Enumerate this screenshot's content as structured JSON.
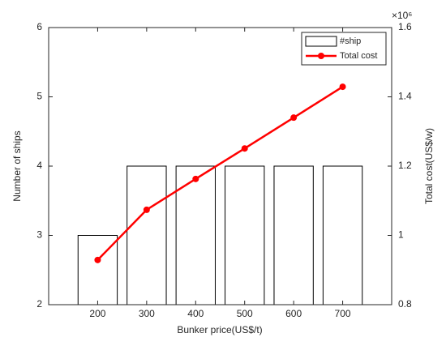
{
  "chart_data": {
    "type": "bar",
    "x_label": "Bunker price(US$/t)",
    "y_label": "Number of ships",
    "y2_label": "Total cost(US$/w)",
    "y2_multiplier": "×10⁶",
    "x": [
      200,
      300,
      400,
      500,
      600,
      700
    ],
    "xlim": [
      100,
      800
    ],
    "xticks": [
      200,
      300,
      400,
      500,
      600,
      700
    ],
    "ylim": [
      2,
      6
    ],
    "yticks": [
      2,
      3,
      4,
      5,
      6
    ],
    "y2lim": [
      0.8,
      1.6
    ],
    "y2ticks": [
      0.8,
      1,
      1.2,
      1.4,
      1.6
    ],
    "legend": "northeast",
    "series": [
      {
        "name": "#ship",
        "type": "bar",
        "color": "#ffffff",
        "values": [
          3,
          4,
          4,
          4,
          4,
          4
        ]
      },
      {
        "name": "Total cost",
        "type": "line",
        "axis": "y2",
        "color": "#ff0000",
        "values": [
          0.929,
          1.074,
          1.163,
          1.251,
          1.34,
          1.429
        ]
      }
    ]
  }
}
